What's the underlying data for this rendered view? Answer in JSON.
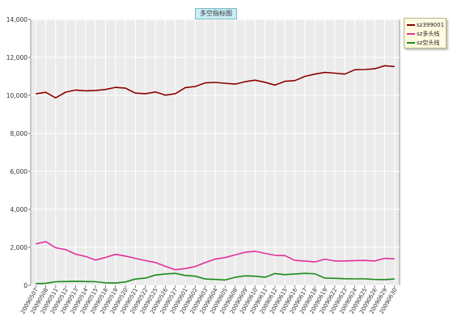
{
  "chart_data": {
    "type": "line",
    "title": "多空指标图",
    "xlabel": "",
    "ylabel": "",
    "ylim": [
      0,
      14000
    ],
    "yticks": [
      "0",
      "2,000",
      "4,000",
      "6,000",
      "8,000",
      "10,000",
      "12,000",
      "14,000"
    ],
    "ytick_values": [
      0,
      2000,
      4000,
      6000,
      8000,
      10000,
      12000,
      14000
    ],
    "grid": true,
    "legend_position": "top-right",
    "categories": [
      "20090507",
      "20090508",
      "20090511",
      "20090512",
      "20090513",
      "20090514",
      "20090515",
      "20090518",
      "20090519",
      "20090520",
      "20090521",
      "20090522",
      "20090525",
      "20090526",
      "20090527",
      "20090601",
      "20090602",
      "20090603",
      "20090604",
      "20090605",
      "20090608",
      "20090609",
      "20090610",
      "20090611",
      "20090612",
      "20090615",
      "20090616",
      "20090617",
      "20090618",
      "20090619",
      "20090622",
      "20090623",
      "20090624",
      "20090625",
      "20090626",
      "20090629",
      "20090630"
    ],
    "series": [
      {
        "name": "sz399001",
        "color": "#8b0000",
        "values": [
          10080,
          10160,
          9870,
          10170,
          10280,
          10240,
          10260,
          10310,
          10420,
          10380,
          10120,
          10090,
          10180,
          10010,
          10090,
          10410,
          10470,
          10660,
          10680,
          10640,
          10590,
          10720,
          10800,
          10690,
          10540,
          10740,
          10780,
          11000,
          11120,
          11210,
          11170,
          11120,
          11350,
          11360,
          11400,
          11560,
          11520
        ]
      },
      {
        "name": "sz多头线",
        "color": "#e0309a",
        "values": [
          2180,
          2300,
          1980,
          1880,
          1640,
          1520,
          1330,
          1470,
          1630,
          1540,
          1420,
          1300,
          1200,
          1000,
          820,
          880,
          990,
          1200,
          1380,
          1460,
          1600,
          1740,
          1790,
          1680,
          1580,
          1560,
          1310,
          1280,
          1230,
          1380,
          1280,
          1280,
          1300,
          1310,
          1280,
          1420,
          1390
        ]
      },
      {
        "name": "sz空头线",
        "color": "#1a8a1a",
        "values": [
          90,
          100,
          190,
          200,
          210,
          200,
          190,
          130,
          120,
          180,
          330,
          380,
          540,
          600,
          630,
          520,
          480,
          330,
          310,
          280,
          420,
          500,
          480,
          420,
          620,
          560,
          600,
          630,
          610,
          380,
          370,
          350,
          340,
          340,
          310,
          300,
          330
        ]
      }
    ]
  }
}
